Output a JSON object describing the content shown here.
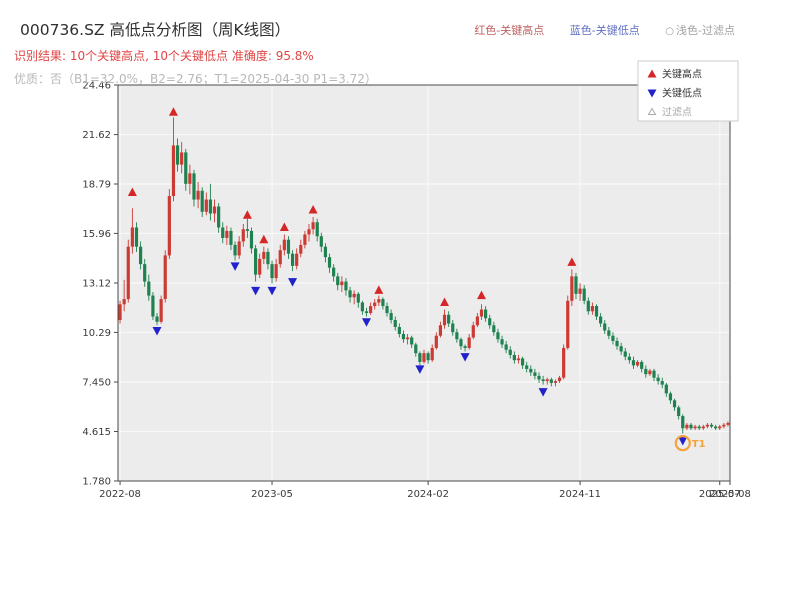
{
  "header": {
    "title": "000736.SZ 高低点分析图（周K线图）",
    "top_legend": [
      {
        "label": "红色-关键高点",
        "color": "#c06060"
      },
      {
        "label": "蓝色-关键低点",
        "color": "#6070c0"
      },
      {
        "label": "浅色-过滤点",
        "color": "#a0a0a0",
        "marker": "○"
      }
    ],
    "result_line": "识别结果: 10个关键高点, 10个关键低点  准确度: 95.8%",
    "result_color": "#e04545",
    "quality_line": "优质：否（B1=32.0%，B2=2.76；T1=2025-04-30 P1=3.72）",
    "quality_color": "#b8b8b8"
  },
  "chart_data": {
    "type": "candlestick",
    "title": "000736.SZ 高低点分析图（周K线图）",
    "symbol": "000736.SZ",
    "interval": "weekly",
    "ylim": [
      1.78,
      24.46
    ],
    "yticks": [
      "24.46",
      "21.62",
      "18.79",
      "15.96",
      "13.12",
      "10.29",
      "7.450",
      "4.615",
      "1.780"
    ],
    "xticks": [
      {
        "label": "2022-08",
        "date": "2022-08-01"
      },
      {
        "label": "2023-05",
        "date": "2023-05-01"
      },
      {
        "label": "2024-02",
        "date": "2024-02-01"
      },
      {
        "label": "2024-11",
        "date": "2024-11-01"
      },
      {
        "label": "2025-07",
        "date": "2025-07-01"
      },
      {
        "label": "2025-08",
        "date": "2025-08-01"
      }
    ],
    "colors": {
      "up": "#cc3b33",
      "down": "#1e8150",
      "high_marker": "#d62728",
      "low_marker": "#2222cc",
      "t1": "#f2a33c",
      "plot_bg": "#ececec",
      "grid": "#f8f8f8",
      "axis": "#4a4a4a",
      "tick_text": "#3a3a3a"
    },
    "legend": [
      {
        "label": "关键高点",
        "marker": "up",
        "color": "#d62728",
        "text_color": "#333333"
      },
      {
        "label": "关键低点",
        "marker": "down",
        "color": "#2222cc",
        "text_color": "#333333"
      },
      {
        "label": "过滤点",
        "marker": "hollow",
        "color": "#aaaaaa",
        "text_color": "#aaaaaa"
      }
    ],
    "key_highs": [
      {
        "date": "2022-08-26",
        "value": 18.3
      },
      {
        "date": "2022-11-11",
        "value": 22.9
      },
      {
        "date": "2023-03-24",
        "value": 17.0
      },
      {
        "date": "2023-04-21",
        "value": 15.6
      },
      {
        "date": "2023-05-26",
        "value": 16.3
      },
      {
        "date": "2023-07-14",
        "value": 17.3
      },
      {
        "date": "2023-11-10",
        "value": 12.7
      },
      {
        "date": "2024-03-08",
        "value": 12.0
      },
      {
        "date": "2024-05-10",
        "value": 12.4
      },
      {
        "date": "2024-10-18",
        "value": 14.3
      }
    ],
    "key_lows": [
      {
        "date": "2022-10-14",
        "value": 10.4
      },
      {
        "date": "2023-03-03",
        "value": 14.1
      },
      {
        "date": "2023-04-07",
        "value": 12.7
      },
      {
        "date": "2023-05-05",
        "value": 12.7
      },
      {
        "date": "2023-06-09",
        "value": 13.2
      },
      {
        "date": "2023-10-20",
        "value": 10.9
      },
      {
        "date": "2024-01-19",
        "value": 8.2
      },
      {
        "date": "2024-04-12",
        "value": 8.9
      },
      {
        "date": "2024-08-23",
        "value": 6.9
      },
      {
        "date": "2025-04-30",
        "value": 4.1
      }
    ],
    "t1_marker": {
      "date": "2025-04-30",
      "value": 3.95,
      "label": "T1"
    },
    "candles": [
      [
        "2022-08-05",
        11.0,
        12.1,
        10.8,
        11.9
      ],
      [
        "2022-08-12",
        11.9,
        13.3,
        11.5,
        12.2
      ],
      [
        "2022-08-19",
        12.2,
        15.6,
        12.0,
        15.2
      ],
      [
        "2022-08-26",
        15.2,
        17.4,
        14.8,
        16.3
      ],
      [
        "2022-09-02",
        16.3,
        16.6,
        14.9,
        15.2
      ],
      [
        "2022-09-09",
        15.2,
        15.5,
        13.9,
        14.2
      ],
      [
        "2022-09-16",
        14.2,
        14.5,
        12.9,
        13.2
      ],
      [
        "2022-09-23",
        13.2,
        13.6,
        12.1,
        12.4
      ],
      [
        "2022-09-30",
        12.4,
        12.6,
        11.0,
        11.2
      ],
      [
        "2022-10-14",
        11.2,
        11.4,
        10.7,
        10.9
      ],
      [
        "2022-10-21",
        10.9,
        12.4,
        10.8,
        12.2
      ],
      [
        "2022-10-28",
        12.2,
        15.0,
        12.0,
        14.7
      ],
      [
        "2022-11-04",
        14.7,
        18.5,
        14.5,
        18.1
      ],
      [
        "2022-11-11",
        18.1,
        22.6,
        17.8,
        21.0
      ],
      [
        "2022-11-18",
        21.0,
        21.4,
        19.5,
        19.9
      ],
      [
        "2022-11-25",
        19.9,
        21.2,
        19.4,
        20.6
      ],
      [
        "2022-12-02",
        20.6,
        20.8,
        18.4,
        18.8
      ],
      [
        "2022-12-09",
        18.8,
        19.9,
        18.2,
        19.4
      ],
      [
        "2022-12-16",
        19.4,
        19.6,
        17.5,
        17.9
      ],
      [
        "2022-12-23",
        17.9,
        18.9,
        17.4,
        18.4
      ],
      [
        "2022-12-30",
        18.4,
        18.6,
        16.9,
        17.2
      ],
      [
        "2023-01-06",
        17.2,
        18.3,
        17.0,
        17.9
      ],
      [
        "2023-01-13",
        17.9,
        18.8,
        16.7,
        17.1
      ],
      [
        "2023-01-20",
        17.1,
        17.9,
        16.6,
        17.5
      ],
      [
        "2023-02-03",
        17.5,
        17.7,
        16.0,
        16.3
      ],
      [
        "2023-02-10",
        16.3,
        16.6,
        15.4,
        15.7
      ],
      [
        "2023-02-17",
        15.7,
        16.4,
        15.3,
        16.1
      ],
      [
        "2023-02-24",
        16.1,
        16.3,
        15.0,
        15.3
      ],
      [
        "2023-03-03",
        15.3,
        15.5,
        14.4,
        14.7
      ],
      [
        "2023-03-10",
        14.7,
        15.8,
        14.5,
        15.5
      ],
      [
        "2023-03-17",
        15.5,
        16.5,
        15.2,
        16.2
      ],
      [
        "2023-03-24",
        16.2,
        16.8,
        15.7,
        16.1
      ],
      [
        "2023-03-31",
        16.1,
        16.3,
        14.8,
        15.1
      ],
      [
        "2023-04-07",
        15.1,
        15.3,
        13.2,
        13.6
      ],
      [
        "2023-04-14",
        13.6,
        14.8,
        13.4,
        14.5
      ],
      [
        "2023-04-21",
        14.5,
        15.2,
        14.2,
        14.9
      ],
      [
        "2023-04-28",
        14.9,
        15.1,
        13.9,
        14.2
      ],
      [
        "2023-05-05",
        14.2,
        14.4,
        13.1,
        13.4
      ],
      [
        "2023-05-12",
        13.4,
        14.5,
        13.2,
        14.2
      ],
      [
        "2023-05-19",
        14.2,
        15.3,
        14.0,
        15.0
      ],
      [
        "2023-05-26",
        15.0,
        15.9,
        14.7,
        15.6
      ],
      [
        "2023-06-02",
        15.6,
        15.8,
        14.5,
        14.8
      ],
      [
        "2023-06-09",
        14.8,
        15.0,
        13.8,
        14.1
      ],
      [
        "2023-06-16",
        14.1,
        15.1,
        13.9,
        14.8
      ],
      [
        "2023-06-23",
        14.8,
        15.6,
        14.6,
        15.3
      ],
      [
        "2023-06-30",
        15.3,
        16.1,
        15.1,
        15.9
      ],
      [
        "2023-07-07",
        15.9,
        16.5,
        15.5,
        16.2
      ],
      [
        "2023-07-14",
        16.2,
        16.9,
        15.9,
        16.6
      ],
      [
        "2023-07-21",
        16.6,
        16.8,
        15.5,
        15.8
      ],
      [
        "2023-07-28",
        15.8,
        16.0,
        14.9,
        15.2
      ],
      [
        "2023-08-04",
        15.2,
        15.4,
        14.3,
        14.6
      ],
      [
        "2023-08-11",
        14.6,
        14.8,
        13.7,
        14.0
      ],
      [
        "2023-08-18",
        14.0,
        14.2,
        13.2,
        13.5
      ],
      [
        "2023-08-25",
        13.5,
        13.7,
        12.7,
        13.0
      ],
      [
        "2023-09-01",
        13.0,
        13.5,
        12.6,
        13.2
      ],
      [
        "2023-09-08",
        13.2,
        13.4,
        12.4,
        12.7
      ],
      [
        "2023-09-15",
        12.7,
        12.9,
        12.0,
        12.3
      ],
      [
        "2023-09-22",
        12.3,
        12.7,
        11.9,
        12.5
      ],
      [
        "2023-09-28",
        12.5,
        12.6,
        11.7,
        12.0
      ],
      [
        "2023-10-13",
        12.0,
        12.1,
        11.3,
        11.5
      ],
      [
        "2023-10-20",
        11.5,
        11.7,
        11.2,
        11.4
      ],
      [
        "2023-10-27",
        11.4,
        12.0,
        11.3,
        11.8
      ],
      [
        "2023-11-03",
        11.8,
        12.2,
        11.6,
        12.0
      ],
      [
        "2023-11-10",
        12.0,
        12.4,
        11.8,
        12.2
      ],
      [
        "2023-11-17",
        12.2,
        12.3,
        11.6,
        11.8
      ],
      [
        "2023-11-24",
        11.8,
        12.0,
        11.2,
        11.4
      ],
      [
        "2023-12-01",
        11.4,
        11.6,
        10.8,
        11.0
      ],
      [
        "2023-12-08",
        11.0,
        11.2,
        10.4,
        10.6
      ],
      [
        "2023-12-15",
        10.6,
        10.8,
        10.0,
        10.2
      ],
      [
        "2023-12-22",
        10.2,
        10.4,
        9.7,
        9.9
      ],
      [
        "2023-12-29",
        9.9,
        10.2,
        9.6,
        10.0
      ],
      [
        "2024-01-05",
        10.0,
        10.1,
        9.4,
        9.6
      ],
      [
        "2024-01-12",
        9.6,
        9.7,
        8.9,
        9.1
      ],
      [
        "2024-01-19",
        9.1,
        9.2,
        8.4,
        8.6
      ],
      [
        "2024-01-26",
        8.6,
        9.3,
        8.5,
        9.1
      ],
      [
        "2024-02-02",
        9.1,
        9.2,
        8.5,
        8.7
      ],
      [
        "2024-02-08",
        8.7,
        9.6,
        8.6,
        9.4
      ],
      [
        "2024-02-23",
        9.4,
        10.3,
        9.3,
        10.1
      ],
      [
        "2024-03-01",
        10.1,
        10.9,
        10.0,
        10.7
      ],
      [
        "2024-03-08",
        10.7,
        11.6,
        10.5,
        11.3
      ],
      [
        "2024-03-15",
        11.3,
        11.5,
        10.6,
        10.8
      ],
      [
        "2024-03-22",
        10.8,
        11.0,
        10.1,
        10.3
      ],
      [
        "2024-03-29",
        10.3,
        10.5,
        9.7,
        9.9
      ],
      [
        "2024-04-03",
        9.9,
        10.0,
        9.3,
        9.5
      ],
      [
        "2024-04-12",
        9.5,
        9.6,
        9.2,
        9.4
      ],
      [
        "2024-04-19",
        9.4,
        10.2,
        9.3,
        10.0
      ],
      [
        "2024-04-26",
        10.0,
        10.9,
        9.9,
        10.7
      ],
      [
        "2024-04-30",
        10.7,
        11.4,
        10.6,
        11.2
      ],
      [
        "2024-05-10",
        11.2,
        11.9,
        11.0,
        11.6
      ],
      [
        "2024-05-17",
        11.6,
        11.8,
        10.9,
        11.1
      ],
      [
        "2024-05-24",
        11.1,
        11.3,
        10.5,
        10.7
      ],
      [
        "2024-05-31",
        10.7,
        10.9,
        10.1,
        10.3
      ],
      [
        "2024-06-07",
        10.3,
        10.5,
        9.7,
        9.9
      ],
      [
        "2024-06-14",
        9.9,
        10.1,
        9.4,
        9.6
      ],
      [
        "2024-06-21",
        9.6,
        9.8,
        9.1,
        9.3
      ],
      [
        "2024-06-28",
        9.3,
        9.5,
        8.8,
        9.0
      ],
      [
        "2024-07-05",
        9.0,
        9.2,
        8.5,
        8.7
      ],
      [
        "2024-07-12",
        8.7,
        9.0,
        8.5,
        8.8
      ],
      [
        "2024-07-19",
        8.8,
        8.9,
        8.2,
        8.4
      ],
      [
        "2024-07-26",
        8.4,
        8.6,
        8.0,
        8.2
      ],
      [
        "2024-08-02",
        8.2,
        8.4,
        7.8,
        8.0
      ],
      [
        "2024-08-09",
        8.0,
        8.2,
        7.6,
        7.8
      ],
      [
        "2024-08-16",
        7.8,
        8.0,
        7.4,
        7.6
      ],
      [
        "2024-08-23",
        7.6,
        7.8,
        7.3,
        7.5
      ],
      [
        "2024-08-30",
        7.5,
        7.7,
        7.3,
        7.6
      ],
      [
        "2024-09-06",
        7.6,
        7.7,
        7.2,
        7.4
      ],
      [
        "2024-09-13",
        7.4,
        7.6,
        7.2,
        7.5
      ],
      [
        "2024-09-20",
        7.5,
        7.8,
        7.4,
        7.7
      ],
      [
        "2024-09-27",
        7.7,
        9.6,
        7.6,
        9.4
      ],
      [
        "2024-10-11",
        9.4,
        12.4,
        9.3,
        12.1
      ],
      [
        "2024-10-18",
        12.1,
        13.9,
        11.8,
        13.5
      ],
      [
        "2024-10-25",
        13.5,
        13.7,
        12.2,
        12.5
      ],
      [
        "2024-11-01",
        12.5,
        13.1,
        12.1,
        12.8
      ],
      [
        "2024-11-08",
        12.8,
        13.0,
        11.9,
        12.1
      ],
      [
        "2024-11-15",
        12.1,
        12.3,
        11.3,
        11.5
      ],
      [
        "2024-11-22",
        11.5,
        12.0,
        11.3,
        11.8
      ],
      [
        "2024-11-29",
        11.8,
        11.9,
        11.0,
        11.2
      ],
      [
        "2024-12-06",
        11.2,
        11.4,
        10.6,
        10.8
      ],
      [
        "2024-12-13",
        10.8,
        11.0,
        10.2,
        10.4
      ],
      [
        "2024-12-20",
        10.4,
        10.6,
        9.9,
        10.1
      ],
      [
        "2024-12-27",
        10.1,
        10.3,
        9.6,
        9.8
      ],
      [
        "2025-01-03",
        9.8,
        10.0,
        9.3,
        9.5
      ],
      [
        "2025-01-10",
        9.5,
        9.7,
        9.0,
        9.2
      ],
      [
        "2025-01-17",
        9.2,
        9.4,
        8.7,
        8.9
      ],
      [
        "2025-01-24",
        8.9,
        9.1,
        8.5,
        8.7
      ],
      [
        "2025-02-07",
        8.7,
        8.9,
        8.2,
        8.4
      ],
      [
        "2025-02-14",
        8.4,
        8.7,
        8.3,
        8.6
      ],
      [
        "2025-02-21",
        8.6,
        8.7,
        8.0,
        8.2
      ],
      [
        "2025-02-28",
        8.2,
        8.4,
        7.7,
        7.9
      ],
      [
        "2025-03-07",
        7.9,
        8.2,
        7.8,
        8.1
      ],
      [
        "2025-03-14",
        8.1,
        8.2,
        7.5,
        7.7
      ],
      [
        "2025-03-21",
        7.7,
        7.9,
        7.3,
        7.5
      ],
      [
        "2025-03-28",
        7.5,
        7.7,
        7.1,
        7.3
      ],
      [
        "2025-04-03",
        7.3,
        7.4,
        6.6,
        6.8
      ],
      [
        "2025-04-11",
        6.8,
        6.9,
        6.2,
        6.4
      ],
      [
        "2025-04-18",
        6.4,
        6.5,
        5.8,
        6.0
      ],
      [
        "2025-04-25",
        6.0,
        6.1,
        5.3,
        5.5
      ],
      [
        "2025-04-30",
        5.5,
        5.6,
        4.5,
        4.8
      ],
      [
        "2025-05-09",
        4.8,
        5.1,
        4.7,
        5.0
      ],
      [
        "2025-05-16",
        5.0,
        5.1,
        4.7,
        4.8
      ],
      [
        "2025-05-23",
        4.8,
        5.0,
        4.7,
        4.9
      ],
      [
        "2025-05-30",
        4.9,
        5.0,
        4.7,
        4.8
      ],
      [
        "2025-06-06",
        4.8,
        5.0,
        4.7,
        4.9
      ],
      [
        "2025-06-13",
        4.9,
        5.1,
        4.8,
        5.0
      ],
      [
        "2025-06-20",
        5.0,
        5.1,
        4.8,
        4.9
      ],
      [
        "2025-06-27",
        4.9,
        5.0,
        4.7,
        4.8
      ],
      [
        "2025-07-04",
        4.8,
        5.0,
        4.7,
        4.9
      ],
      [
        "2025-07-11",
        4.9,
        5.1,
        4.8,
        5.0
      ],
      [
        "2025-07-18",
        5.0,
        5.2,
        4.9,
        5.1
      ]
    ]
  }
}
